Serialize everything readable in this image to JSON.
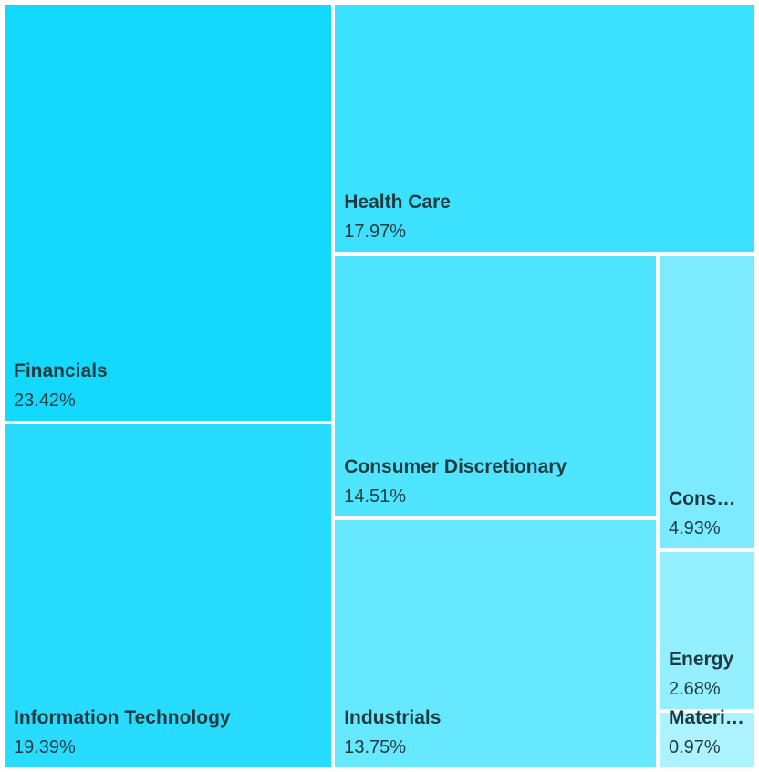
{
  "chart_data": {
    "type": "treemap",
    "title": "",
    "unit": "%",
    "items": [
      {
        "name": "Financials",
        "display_name": "Financials",
        "value": 23.42,
        "value_label": "23.42%",
        "color": "#14d9ff"
      },
      {
        "name": "Information Technology",
        "display_name": "Information Technology",
        "value": 19.39,
        "value_label": "19.39%",
        "color": "#28dcff"
      },
      {
        "name": "Health Care",
        "display_name": "Health Care",
        "value": 17.97,
        "value_label": "17.97%",
        "color": "#3ce1ff"
      },
      {
        "name": "Consumer Discretionary",
        "display_name": "Consumer Discretionary",
        "value": 14.51,
        "value_label": "14.51%",
        "color": "#50e5ff"
      },
      {
        "name": "Industrials",
        "display_name": "Industrials",
        "value": 13.75,
        "value_label": "13.75%",
        "color": "#66e8ff"
      },
      {
        "name": "Consumer Staples",
        "display_name": "Consum...",
        "value": 4.93,
        "value_label": "4.93%",
        "color": "#7debff"
      },
      {
        "name": "Energy",
        "display_name": "Energy",
        "value": 2.68,
        "value_label": "2.68%",
        "color": "#94efff"
      },
      {
        "name": "Materials",
        "display_name": "Materials",
        "value": 0.97,
        "value_label": "0.97%",
        "color": "#adf3ff"
      }
    ]
  }
}
